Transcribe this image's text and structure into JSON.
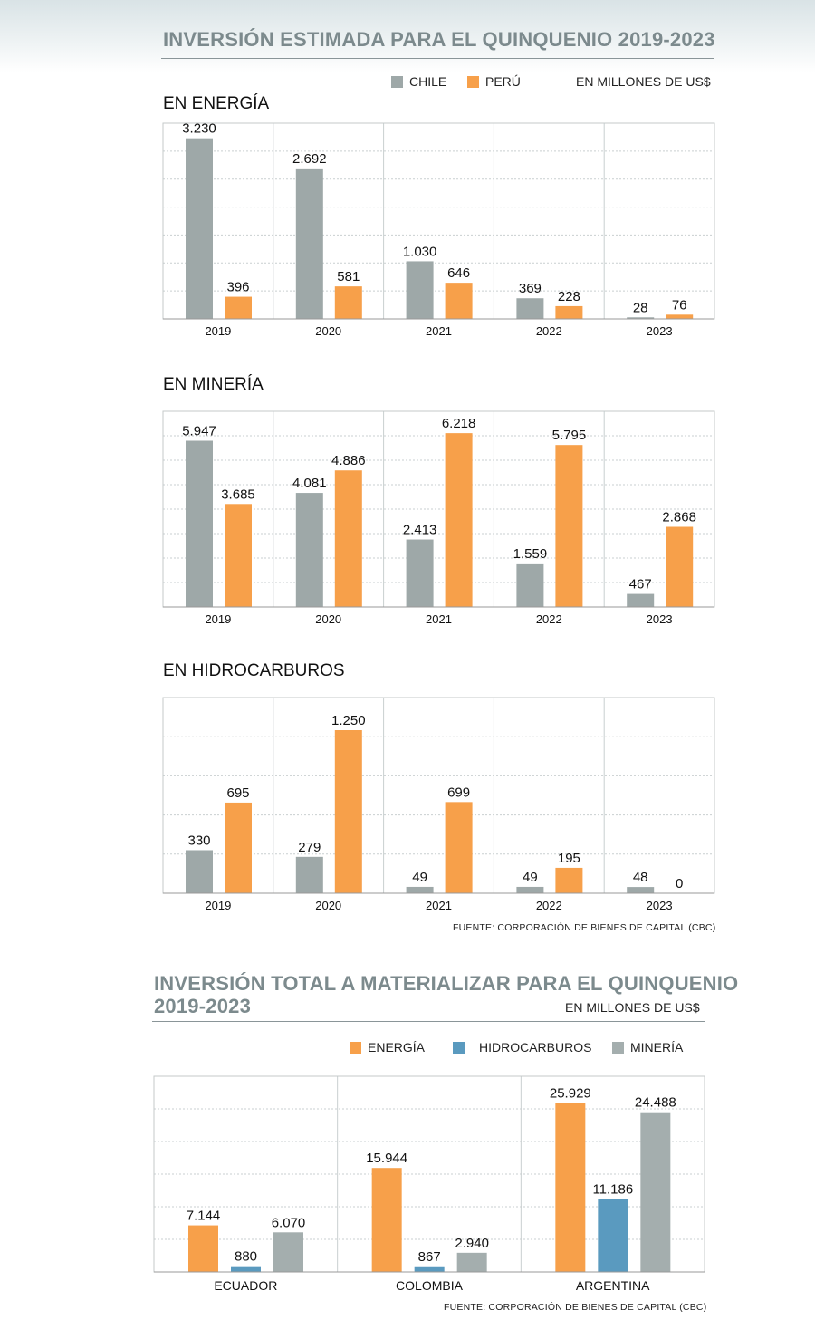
{
  "top": {
    "title": "INVERSIÓN ESTIMADA PARA EL QUINQUENIO 2019-2023",
    "legend": [
      {
        "label": "CHILE",
        "color": "#9ea8a8"
      },
      {
        "label": "PERÚ",
        "color": "#f7a04a"
      }
    ],
    "unit": "EN MILLONES DE US$",
    "source": "FUENTE: CORPORACIÓN DE BIENES DE CAPITAL (CBC)"
  },
  "bottom": {
    "title_line1": "INVERSIÓN TOTAL A MATERIALIZAR PARA EL QUINQUENIO",
    "title_line2": "2019-2023",
    "unit": "EN MILLONES DE US$",
    "legend": [
      {
        "label": "ENERGÍA",
        "color": "#f7a04a"
      },
      {
        "label": "HIDROCARBUROS",
        "color": "#5a9abf"
      },
      {
        "label": "MINERÍA",
        "color": "#a4aeae"
      }
    ],
    "source": "FUENTE: CORPORACIÓN DE BIENES DE CAPITAL (CBC)"
  },
  "chart_data": [
    {
      "type": "bar",
      "title": "EN ENERGÍA",
      "categories": [
        "2019",
        "2020",
        "2021",
        "2022",
        "2023"
      ],
      "series": [
        {
          "name": "CHILE",
          "values": [
            3230,
            2692,
            1030,
            369,
            28
          ],
          "labels": [
            "3.230",
            "2.692",
            "1.030",
            "369",
            "28"
          ],
          "color": "#9ea8a8"
        },
        {
          "name": "PERÚ",
          "values": [
            396,
            581,
            646,
            228,
            76
          ],
          "labels": [
            "396",
            "581",
            "646",
            "228",
            "76"
          ],
          "color": "#f7a04a"
        }
      ],
      "ylim": [
        0,
        3500
      ],
      "grid": true
    },
    {
      "type": "bar",
      "title": "EN MINERÍA",
      "categories": [
        "2019",
        "2020",
        "2021",
        "2022",
        "2023"
      ],
      "series": [
        {
          "name": "CHILE",
          "values": [
            5947,
            4081,
            2413,
            1559,
            467
          ],
          "labels": [
            "5.947",
            "4.081",
            "2.413",
            "1.559",
            "467"
          ],
          "color": "#9ea8a8"
        },
        {
          "name": "PERÚ",
          "values": [
            3685,
            4886,
            6218,
            5795,
            2868
          ],
          "labels": [
            "3.685",
            "4.886",
            "6.218",
            "5.795",
            "2.868"
          ],
          "color": "#f7a04a"
        }
      ],
      "ylim": [
        0,
        7000
      ],
      "grid": true
    },
    {
      "type": "bar",
      "title": "EN HIDROCARBUROS",
      "categories": [
        "2019",
        "2020",
        "2021",
        "2022",
        "2023"
      ],
      "series": [
        {
          "name": "CHILE",
          "values": [
            330,
            279,
            49,
            49,
            48
          ],
          "labels": [
            "330",
            "279",
            "49",
            "49",
            "48"
          ],
          "color": "#9ea8a8"
        },
        {
          "name": "PERÚ",
          "values": [
            695,
            1250,
            699,
            195,
            0
          ],
          "labels": [
            "695",
            "1.250",
            "699",
            "195",
            "0"
          ],
          "color": "#f7a04a"
        }
      ],
      "ylim": [
        0,
        1500
      ],
      "grid": true
    },
    {
      "type": "bar",
      "title": "",
      "categories": [
        "ECUADOR",
        "COLOMBIA",
        "ARGENTINA"
      ],
      "series": [
        {
          "name": "ENERGÍA",
          "values": [
            7144,
            15944,
            25929
          ],
          "labels": [
            "7.144",
            "15.944",
            "25.929"
          ],
          "color": "#f7a04a"
        },
        {
          "name": "HIDROCARBUROS",
          "values": [
            880,
            867,
            11186
          ],
          "labels": [
            "880",
            "867",
            "11.186"
          ],
          "color": "#5a9abf"
        },
        {
          "name": "MINERÍA",
          "values": [
            6070,
            2940,
            24488
          ],
          "labels": [
            "6.070",
            "2.940",
            "24.488"
          ],
          "color": "#a4aeae"
        }
      ],
      "ylim": [
        0,
        30000
      ],
      "grid": true
    }
  ]
}
